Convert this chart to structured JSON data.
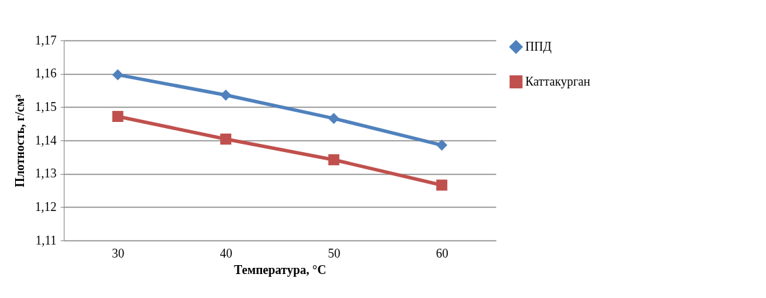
{
  "chart_data": {
    "type": "line",
    "xlabel": "Температура, °C",
    "ylabel": "Плотность, г/см³",
    "categories": [
      "30",
      "40",
      "50",
      "60"
    ],
    "series": [
      {
        "name": "ППД",
        "color": "#4f81bd",
        "marker": "diamond",
        "values": [
          1.1597,
          1.1536,
          1.1466,
          1.1386
        ]
      },
      {
        "name": "Каттакурган",
        "color": "#c0504d",
        "marker": "square",
        "values": [
          1.1472,
          1.1404,
          1.1342,
          1.1266
        ]
      }
    ],
    "ylim": [
      1.11,
      1.17
    ],
    "yticks": [
      {
        "value": 1.11,
        "label": "1,11"
      },
      {
        "value": 1.12,
        "label": "1,12"
      },
      {
        "value": 1.13,
        "label": "1,13"
      },
      {
        "value": 1.14,
        "label": "1,14"
      },
      {
        "value": 1.15,
        "label": "1,15"
      },
      {
        "value": 1.16,
        "label": "1,16"
      },
      {
        "value": 1.17,
        "label": "1,17"
      }
    ],
    "grid": "y",
    "legend": "right",
    "line_style": "solid"
  }
}
